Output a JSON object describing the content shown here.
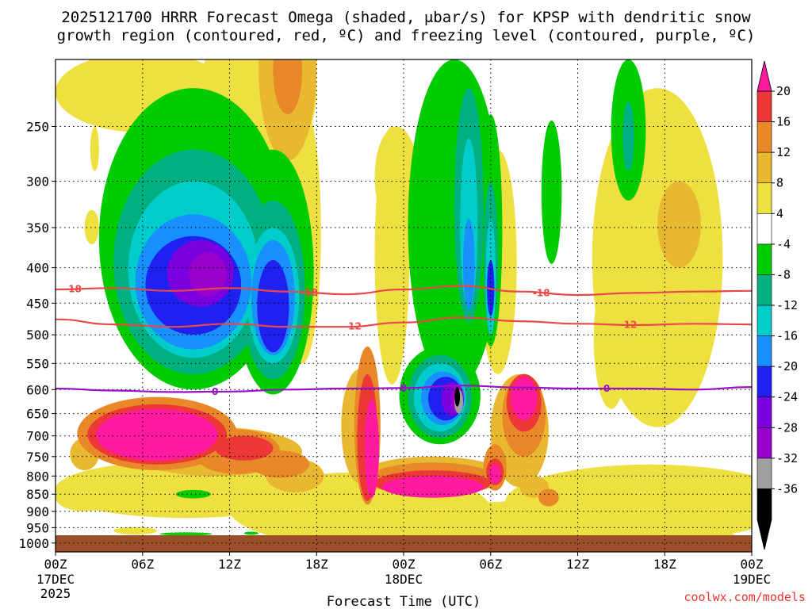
{
  "title": {
    "line1": "2025121700 HRRR Forecast Omega (shaded, μbar/s) for KPSP with dendritic snow",
    "line2": "growth region (contoured, red, ºC) and freezing level (contoured, purple, ºC)"
  },
  "credit": "coolwx.com/models",
  "colors": {
    "shading": [
      "#000000",
      "#a0a0a0",
      "#9a00cc",
      "#7a00e0",
      "#2020f0",
      "#1890ff",
      "#00cccc",
      "#00b080",
      "#00cc00",
      "#ffffff",
      "#eee040",
      "#e8b830",
      "#e88828",
      "#ee3838",
      "#ff1aa0"
    ],
    "dgz": "#e84848",
    "freezing": "#9a10c8",
    "ground": "#9a4f28"
  },
  "chart_data": {
    "type": "heatmap",
    "xlabel": "Forecast Time (UTC)",
    "ylabel": "",
    "ylim": [
      1000,
      200
    ],
    "x_ticks": [
      {
        "hour": 0,
        "label": "00Z",
        "sub1": "17DEC",
        "sub2": "2025"
      },
      {
        "hour": 6,
        "label": "06Z",
        "sub1": "",
        "sub2": ""
      },
      {
        "hour": 12,
        "label": "12Z",
        "sub1": "",
        "sub2": ""
      },
      {
        "hour": 18,
        "label": "18Z",
        "sub1": "",
        "sub2": ""
      },
      {
        "hour": 24,
        "label": "00Z",
        "sub1": "18DEC",
        "sub2": ""
      },
      {
        "hour": 30,
        "label": "06Z",
        "sub1": "",
        "sub2": ""
      },
      {
        "hour": 36,
        "label": "12Z",
        "sub1": "",
        "sub2": ""
      },
      {
        "hour": 42,
        "label": "18Z",
        "sub1": "",
        "sub2": ""
      },
      {
        "hour": 48,
        "label": "00Z",
        "sub1": "19DEC",
        "sub2": ""
      }
    ],
    "y_ticks": [
      250,
      300,
      350,
      400,
      450,
      500,
      550,
      600,
      650,
      700,
      750,
      800,
      850,
      900,
      950,
      1000
    ],
    "colorbar": {
      "levels": [
        "20",
        "16",
        "12",
        "8",
        "4",
        "-4",
        "-8",
        "-12",
        "-16",
        "-20",
        "-24",
        "-28",
        "-32",
        "-36"
      ]
    },
    "blobs": [
      {
        "c": 10,
        "cx": 33,
        "cy": 1005,
        "rx": 14,
        "ry": 135
      },
      {
        "c": 10,
        "cx": 21,
        "cy": 900,
        "rx": 9,
        "ry": 110
      },
      {
        "c": 10,
        "cx": 41,
        "cy": 880,
        "rx": 10,
        "ry": 110
      },
      {
        "c": 10,
        "cx": 9,
        "cy": 840,
        "rx": 9,
        "ry": 80
      },
      {
        "c": 10,
        "cx": 2,
        "cy": 860,
        "rx": 2,
        "ry": 40
      },
      {
        "c": 10,
        "cx": 17,
        "cy": 390,
        "rx": 1.3,
        "ry": 160
      },
      {
        "c": 10,
        "cx": 23.2,
        "cy": 420,
        "rx": 1.2,
        "ry": 170
      },
      {
        "c": 10,
        "cx": 26.5,
        "cy": 400,
        "rx": 1.5,
        "ry": 160
      },
      {
        "c": 10,
        "cx": 30.5,
        "cy": 420,
        "rx": 1.3,
        "ry": 150
      },
      {
        "c": 10,
        "cx": 41.5,
        "cy": 450,
        "rx": 4.5,
        "ry": 230
      },
      {
        "c": 10,
        "cx": 6,
        "cy": 225,
        "rx": 6,
        "ry": 30
      },
      {
        "c": 10,
        "cx": 14,
        "cy": 230,
        "rx": 4,
        "ry": 60
      },
      {
        "c": 10,
        "cx": 2.5,
        "cy": 350,
        "rx": 0.5,
        "ry": 20
      },
      {
        "c": 10,
        "cx": 2.7,
        "cy": 270,
        "rx": 0.3,
        "ry": 20
      },
      {
        "c": 10,
        "cx": 23.5,
        "cy": 300,
        "rx": 1.5,
        "ry": 50
      },
      {
        "c": 10,
        "cx": 28.5,
        "cy": 310,
        "rx": 1.5,
        "ry": 55
      },
      {
        "c": 10,
        "cx": 38.3,
        "cy": 520,
        "rx": 1.2,
        "ry": 120
      },
      {
        "c": 10,
        "cx": 26.5,
        "cy": 930,
        "rx": 5,
        "ry": 40
      },
      {
        "c": 11,
        "cx": 16,
        "cy": 200,
        "rx": 2,
        "ry": 80
      },
      {
        "c": 11,
        "cx": 43,
        "cy": 350,
        "rx": 1.5,
        "ry": 50
      },
      {
        "c": 11,
        "cx": 21,
        "cy": 690,
        "rx": 1.3,
        "ry": 130
      },
      {
        "c": 11,
        "cx": 11,
        "cy": 740,
        "rx": 6,
        "ry": 60
      },
      {
        "c": 11,
        "cx": 26,
        "cy": 800,
        "rx": 5,
        "ry": 50
      },
      {
        "c": 11,
        "cx": 32,
        "cy": 700,
        "rx": 2,
        "ry": 130
      },
      {
        "c": 11,
        "cx": 16.5,
        "cy": 800,
        "rx": 2,
        "ry": 45
      },
      {
        "c": 11,
        "cx": 25.8,
        "cy": 380,
        "rx": 0.8,
        "ry": 90
      },
      {
        "c": 11,
        "cx": 2,
        "cy": 745,
        "rx": 1,
        "ry": 40
      },
      {
        "c": 11,
        "cx": 33,
        "cy": 830,
        "rx": 1,
        "ry": 30
      },
      {
        "c": 12,
        "cx": 7,
        "cy": 700,
        "rx": 5.5,
        "ry": 85
      },
      {
        "c": 12,
        "cx": 12.5,
        "cy": 740,
        "rx": 3,
        "ry": 55
      },
      {
        "c": 12,
        "cx": 15.5,
        "cy": 770,
        "rx": 2,
        "ry": 35
      },
      {
        "c": 12,
        "cx": 21.5,
        "cy": 700,
        "rx": 0.9,
        "ry": 180
      },
      {
        "c": 12,
        "cx": 26,
        "cy": 810,
        "rx": 4.5,
        "ry": 45
      },
      {
        "c": 12,
        "cx": 32.3,
        "cy": 660,
        "rx": 1.5,
        "ry": 90
      },
      {
        "c": 12,
        "cx": 30.3,
        "cy": 780,
        "rx": 0.8,
        "ry": 60
      },
      {
        "c": 12,
        "cx": 25.8,
        "cy": 390,
        "rx": 0.6,
        "ry": 65
      },
      {
        "c": 12,
        "cx": 16,
        "cy": 210,
        "rx": 1,
        "ry": 30
      },
      {
        "c": 12,
        "cx": 34,
        "cy": 860,
        "rx": 0.7,
        "ry": 25
      },
      {
        "c": 13,
        "cx": 7,
        "cy": 700,
        "rx": 4.8,
        "ry": 70
      },
      {
        "c": 13,
        "cx": 13,
        "cy": 730,
        "rx": 2,
        "ry": 30
      },
      {
        "c": 13,
        "cx": 21.5,
        "cy": 720,
        "rx": 0.7,
        "ry": 150
      },
      {
        "c": 13,
        "cx": 26,
        "cy": 820,
        "rx": 4,
        "ry": 35
      },
      {
        "c": 13,
        "cx": 32.3,
        "cy": 630,
        "rx": 1.2,
        "ry": 60
      },
      {
        "c": 13,
        "cx": 30.3,
        "cy": 790,
        "rx": 0.6,
        "ry": 35
      },
      {
        "c": 13,
        "cx": 25.8,
        "cy": 400,
        "rx": 0.4,
        "ry": 40
      },
      {
        "c": 14,
        "cx": 7,
        "cy": 700,
        "rx": 4.2,
        "ry": 60
      },
      {
        "c": 14,
        "cx": 21.8,
        "cy": 740,
        "rx": 0.5,
        "ry": 120
      },
      {
        "c": 14,
        "cx": 26,
        "cy": 830,
        "rx": 3.5,
        "ry": 30
      },
      {
        "c": 14,
        "cx": 32.3,
        "cy": 620,
        "rx": 0.9,
        "ry": 45
      },
      {
        "c": 14,
        "cx": 30.3,
        "cy": 795,
        "rx": 0.4,
        "ry": 25
      },
      {
        "c": 14,
        "cx": 25.8,
        "cy": 410,
        "rx": 0.25,
        "ry": 30
      },
      {
        "c": 10,
        "cx": 5.5,
        "cy": 960,
        "rx": 1.5,
        "ry": 12
      },
      {
        "c": 8,
        "cx": 9.5,
        "cy": 410,
        "rx": 6.5,
        "ry": 190
      },
      {
        "c": 8,
        "cx": 15,
        "cy": 440,
        "rx": 2.8,
        "ry": 170
      },
      {
        "c": 8,
        "cx": 27.5,
        "cy": 400,
        "rx": 3.2,
        "ry": 200
      },
      {
        "c": 8,
        "cx": 26.5,
        "cy": 620,
        "rx": 2.8,
        "ry": 100
      },
      {
        "c": 8,
        "cx": 30,
        "cy": 380,
        "rx": 0.8,
        "ry": 140
      },
      {
        "c": 8,
        "cx": 34.2,
        "cy": 320,
        "rx": 0.7,
        "ry": 75
      },
      {
        "c": 8,
        "cx": 39.5,
        "cy": 260,
        "rx": 1.2,
        "ry": 60
      },
      {
        "c": 8,
        "cx": 9.5,
        "cy": 850,
        "rx": 1.2,
        "ry": 12
      },
      {
        "c": 8,
        "cx": 9,
        "cy": 970,
        "rx": 1.8,
        "ry": 5
      },
      {
        "c": 8,
        "cx": 13.5,
        "cy": 968,
        "rx": 0.5,
        "ry": 4
      },
      {
        "c": 7,
        "cx": 9.5,
        "cy": 420,
        "rx": 5.5,
        "ry": 150
      },
      {
        "c": 7,
        "cx": 15,
        "cy": 450,
        "rx": 2.2,
        "ry": 130
      },
      {
        "c": 7,
        "cx": 26.5,
        "cy": 620,
        "rx": 2.2,
        "ry": 85
      },
      {
        "c": 7,
        "cx": 28.5,
        "cy": 350,
        "rx": 1,
        "ry": 130
      },
      {
        "c": 7,
        "cx": 30,
        "cy": 400,
        "rx": 0.5,
        "ry": 100
      },
      {
        "c": 7,
        "cx": 39.5,
        "cy": 260,
        "rx": 0.4,
        "ry": 30
      },
      {
        "c": 6,
        "cx": 9.5,
        "cy": 420,
        "rx": 4.5,
        "ry": 120
      },
      {
        "c": 6,
        "cx": 15,
        "cy": 450,
        "rx": 1.8,
        "ry": 100
      },
      {
        "c": 6,
        "cx": 26.5,
        "cy": 620,
        "rx": 1.8,
        "ry": 70
      },
      {
        "c": 6,
        "cx": 28.5,
        "cy": 360,
        "rx": 0.6,
        "ry": 100
      },
      {
        "c": 6,
        "cx": 30,
        "cy": 420,
        "rx": 0.35,
        "ry": 80
      },
      {
        "c": 5,
        "cx": 9.5,
        "cy": 430,
        "rx": 4,
        "ry": 95
      },
      {
        "c": 5,
        "cx": 15,
        "cy": 450,
        "rx": 1.5,
        "ry": 85
      },
      {
        "c": 5,
        "cx": 26.7,
        "cy": 620,
        "rx": 1.5,
        "ry": 55
      },
      {
        "c": 5,
        "cx": 28.5,
        "cy": 400,
        "rx": 0.4,
        "ry": 60
      },
      {
        "c": 4,
        "cx": 9.5,
        "cy": 430,
        "rx": 3.3,
        "ry": 70
      },
      {
        "c": 4,
        "cx": 15,
        "cy": 460,
        "rx": 1.1,
        "ry": 70
      },
      {
        "c": 4,
        "cx": 26.9,
        "cy": 620,
        "rx": 1.2,
        "ry": 45
      },
      {
        "c": 4,
        "cx": 30,
        "cy": 430,
        "rx": 0.25,
        "ry": 40
      },
      {
        "c": 3,
        "cx": 10,
        "cy": 410,
        "rx": 2.3,
        "ry": 45
      },
      {
        "c": 3,
        "cx": 27.3,
        "cy": 620,
        "rx": 0.7,
        "ry": 35
      },
      {
        "c": 2,
        "cx": 10.5,
        "cy": 410,
        "rx": 1.3,
        "ry": 30
      },
      {
        "c": 2,
        "cx": 27.7,
        "cy": 620,
        "rx": 0.45,
        "ry": 30
      },
      {
        "c": 1,
        "cx": 27.8,
        "cy": 625,
        "rx": 0.3,
        "ry": 25
      },
      {
        "c": 0,
        "cx": 27.7,
        "cy": 615,
        "rx": 0.18,
        "ry": 20
      }
    ],
    "dgz_contours": [
      {
        "value": -18,
        "label": "-18",
        "points": [
          [
            0,
            430
          ],
          [
            4,
            428
          ],
          [
            8,
            432
          ],
          [
            12,
            428
          ],
          [
            16,
            433
          ],
          [
            20,
            437
          ],
          [
            24,
            430
          ],
          [
            28,
            425
          ],
          [
            32,
            433
          ],
          [
            36,
            438
          ],
          [
            40,
            435
          ],
          [
            44,
            433
          ],
          [
            48,
            432
          ]
        ],
        "label_hours": [
          1.2,
          17.5,
          33.5
        ]
      },
      {
        "value": -12,
        "label": "-12",
        "points": [
          [
            0,
            475
          ],
          [
            4,
            483
          ],
          [
            8,
            487
          ],
          [
            12,
            482
          ],
          [
            16,
            487
          ],
          [
            20,
            487
          ],
          [
            24,
            480
          ],
          [
            28,
            472
          ],
          [
            32,
            478
          ],
          [
            36,
            482
          ],
          [
            40,
            484
          ],
          [
            44,
            482
          ],
          [
            48,
            483
          ]
        ],
        "label_hours": [
          20.5,
          39.5
        ]
      }
    ],
    "freezing_contour": {
      "value": 0,
      "label": "0",
      "points": [
        [
          0,
          598
        ],
        [
          4,
          602
        ],
        [
          8,
          605
        ],
        [
          12,
          604
        ],
        [
          16,
          600
        ],
        [
          20,
          598
        ],
        [
          24,
          597
        ],
        [
          28,
          592
        ],
        [
          32,
          596
        ],
        [
          36,
          598
        ],
        [
          40,
          598
        ],
        [
          44,
          600
        ],
        [
          48,
          595
        ]
      ],
      "label_hours": [
        11,
        24,
        38
      ]
    }
  }
}
